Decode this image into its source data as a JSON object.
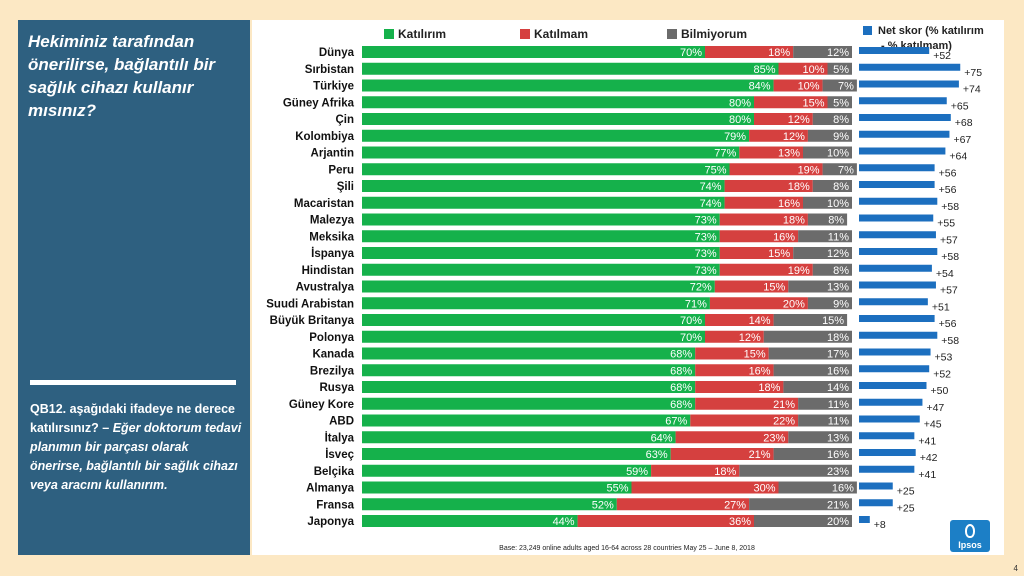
{
  "question": "Hekiminiz tarafından önerilirse, bağlantılı bir sağlık cihazı kullanır mısınız?",
  "qb_code": "QB12. aşağıdaki ifadeye ne derece katılırsınız? –",
  "qb_text": "Eğer doktorum tedavi planımın bir parçası olarak önerirse, bağlantılı bir sağlık cihazı veya aracını kullanırım.",
  "footnote": "Base: 23,249 online adults aged 16-64 across 28 countries May 25 – June 8, 2018",
  "page_number": "4",
  "logo_text": "Ipsos",
  "colors": {
    "agree": "#15b14b",
    "disagree": "#d5403f",
    "dontknow": "#6b6b6b",
    "net": "#1c6fbf"
  },
  "chart_data": {
    "type": "bar",
    "stacked": true,
    "orientation": "horizontal",
    "legend": [
      "Katılırım",
      "Katılmam",
      "Bilmiyorum"
    ],
    "net_legend": [
      "Net skor (% katılırım",
      "- % katılmam)"
    ],
    "categories": [
      "Dünya",
      "Sırbistan",
      "Türkiye",
      "Güney Afrika",
      "Çin",
      "Kolombiya",
      "Arjantin",
      "Peru",
      "Şili",
      "Macaristan",
      "Malezya",
      "Meksika",
      "İspanya",
      "Hindistan",
      "Avustralya",
      "Suudi Arabistan",
      "Büyük Britanya",
      "Polonya",
      "Kanada",
      "Brezilya",
      "Rusya",
      "Güney Kore",
      "ABD",
      "İtalya",
      "İsveç",
      "Belçika",
      "Almanya",
      "Fransa",
      "Japonya"
    ],
    "series": [
      {
        "name": "Katılırım",
        "values": [
          70,
          85,
          84,
          80,
          80,
          79,
          77,
          75,
          74,
          74,
          73,
          73,
          73,
          73,
          72,
          71,
          70,
          70,
          68,
          68,
          68,
          68,
          67,
          64,
          63,
          59,
          55,
          52,
          44
        ]
      },
      {
        "name": "Katılmam",
        "values": [
          18,
          10,
          10,
          15,
          12,
          12,
          13,
          19,
          18,
          16,
          18,
          16,
          15,
          19,
          15,
          20,
          14,
          12,
          15,
          16,
          18,
          21,
          22,
          23,
          21,
          18,
          30,
          27,
          36
        ]
      },
      {
        "name": "Bilmiyorum",
        "values": [
          12,
          5,
          7,
          5,
          8,
          9,
          10,
          7,
          8,
          10,
          8,
          11,
          12,
          8,
          13,
          9,
          15,
          18,
          17,
          16,
          14,
          11,
          11,
          13,
          16,
          23,
          16,
          21,
          20
        ]
      }
    ],
    "net_labels": [
      "+52",
      "+75",
      "+74",
      "+65",
      "+68",
      "+67",
      "+64",
      "+56",
      "+56",
      "+58",
      "+55",
      "+57",
      "+58",
      "+54",
      "+57",
      "+51",
      "+56",
      "+58",
      "+53",
      "+52",
      "+50",
      "+47",
      "+45",
      "+41",
      "+42",
      "+41",
      "+25",
      "+25",
      "+8"
    ],
    "net_values": [
      52,
      75,
      74,
      65,
      68,
      67,
      64,
      56,
      56,
      58,
      55,
      57,
      58,
      54,
      57,
      51,
      56,
      58,
      53,
      52,
      50,
      47,
      45,
      41,
      42,
      41,
      25,
      25,
      8
    ]
  }
}
